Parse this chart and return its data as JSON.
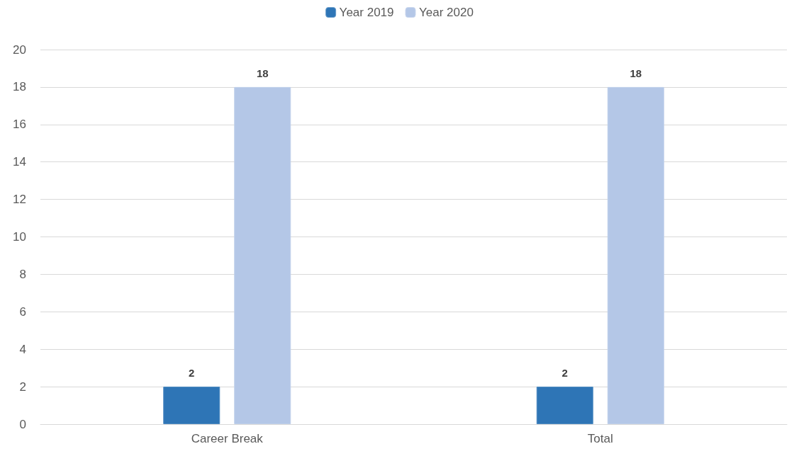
{
  "chart_data": {
    "type": "bar",
    "categories": [
      "Career Break",
      "Total"
    ],
    "series": [
      {
        "name": "Year 2019",
        "color": "#2e75b6",
        "values": [
          2,
          2
        ]
      },
      {
        "name": "Year 2020",
        "color": "#b4c7e7",
        "values": [
          18,
          18
        ]
      }
    ],
    "ylim": [
      0,
      20
    ],
    "yticks": [
      0,
      2,
      4,
      6,
      8,
      10,
      12,
      14,
      16,
      18,
      20
    ],
    "grid": "y",
    "legend": "top",
    "data_labels": true
  }
}
